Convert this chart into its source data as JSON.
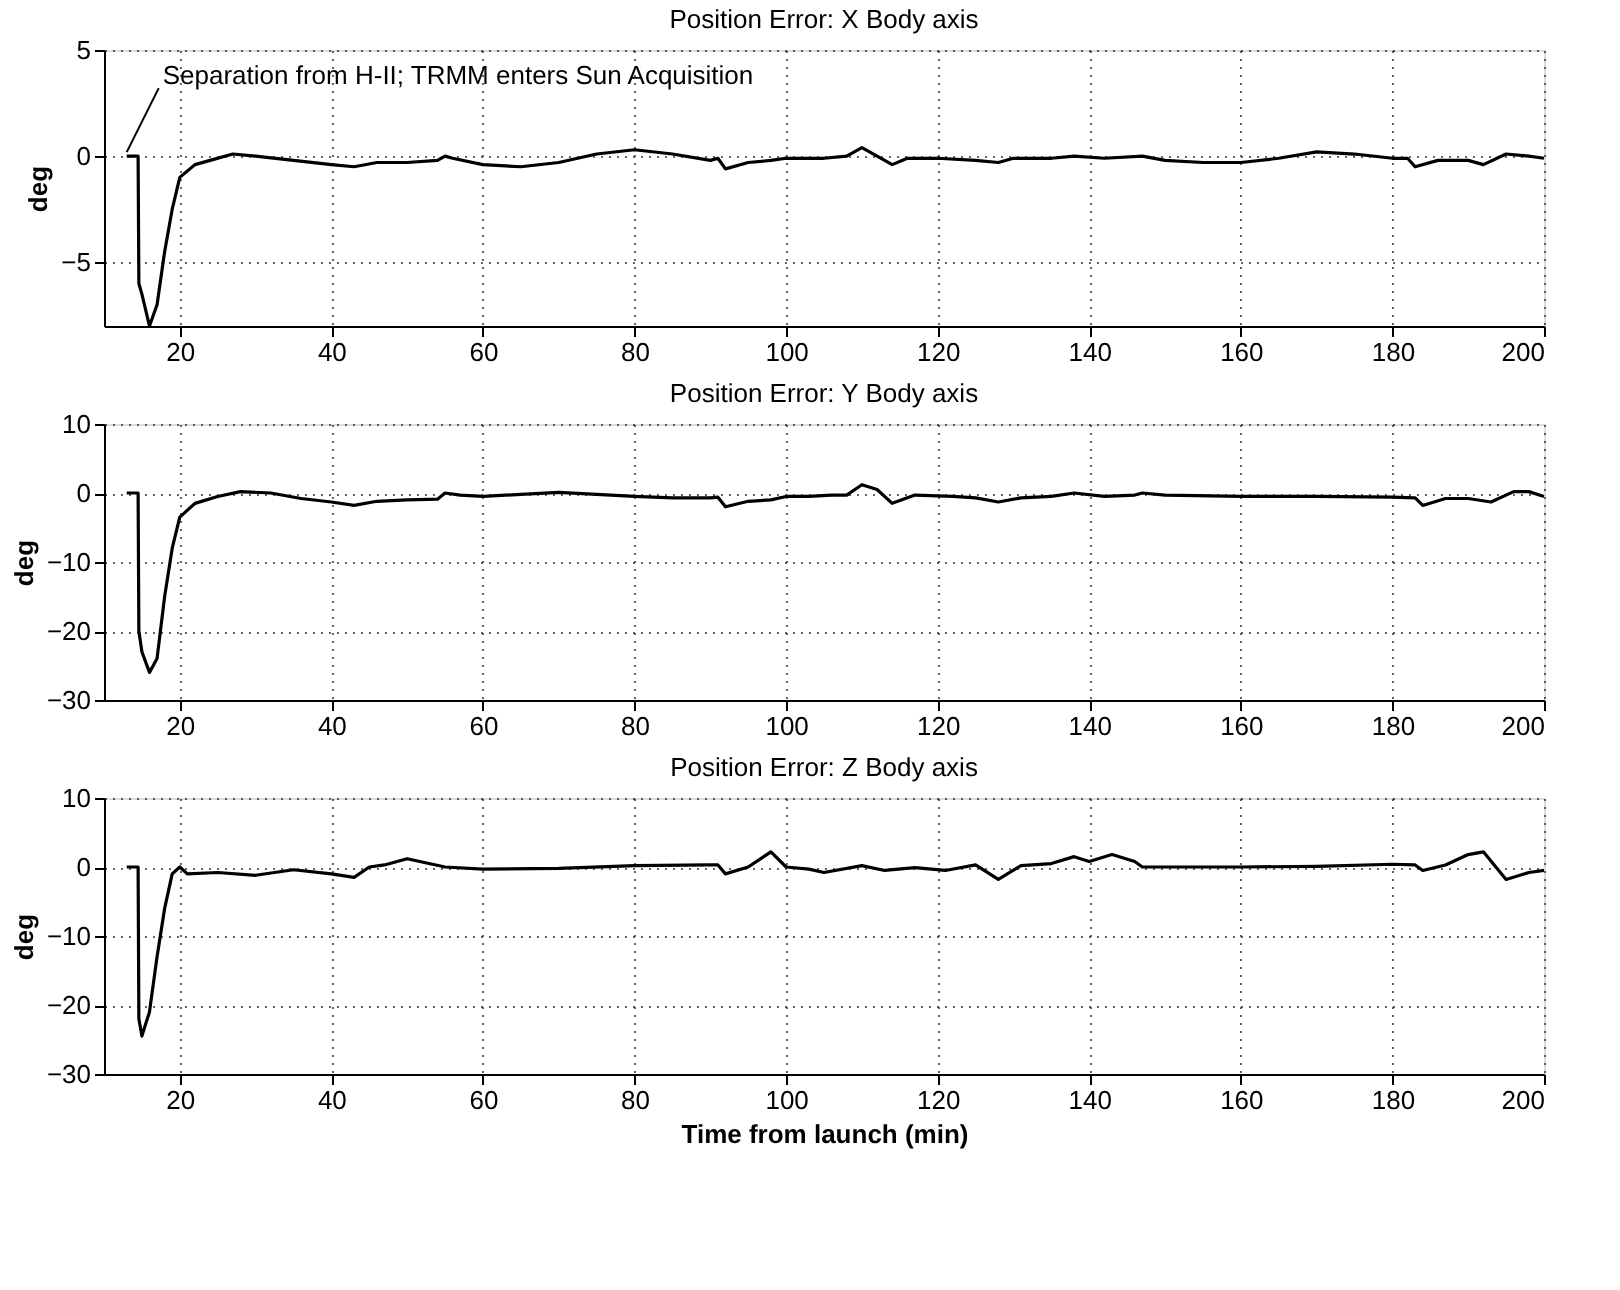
{
  "chart_data": [
    {
      "type": "line",
      "title": "Position Error: X Body axis",
      "ylabel": "deg",
      "xlim": [
        10,
        200
      ],
      "xticks": [
        20,
        40,
        60,
        80,
        100,
        120,
        140,
        160,
        180,
        200
      ],
      "ylim": [
        -8,
        5
      ],
      "yticks": [
        -5,
        0,
        5
      ],
      "grid": true,
      "annotations": [
        {
          "text": "Separation from H-II; TRMM enters Sun Acquisition",
          "x": 13,
          "y": 0
        }
      ],
      "x": [
        13,
        14.5,
        14.6,
        15,
        16,
        17,
        18,
        19,
        20,
        22,
        24,
        27,
        30,
        35,
        40,
        43,
        46,
        50,
        54,
        55,
        56,
        60,
        65,
        70,
        75,
        80,
        85,
        90,
        91,
        92,
        95,
        98,
        100,
        105,
        108,
        110,
        112,
        114,
        116,
        120,
        125,
        128,
        130,
        135,
        138,
        142,
        147,
        150,
        155,
        160,
        165,
        170,
        175,
        180,
        182,
        183,
        186,
        190,
        192,
        195,
        198,
        200
      ],
      "series": [
        {
          "color": "#000000",
          "values": [
            0,
            0,
            -6,
            -6.5,
            -8,
            -7,
            -4.5,
            -2.5,
            -1,
            -0.4,
            -0.2,
            0.1,
            0,
            -0.2,
            -0.4,
            -0.5,
            -0.3,
            -0.3,
            -0.2,
            0,
            -0.1,
            -0.4,
            -0.5,
            -0.3,
            0.1,
            0.3,
            0.1,
            -0.2,
            -0.1,
            -0.6,
            -0.3,
            -0.2,
            -0.1,
            -0.1,
            0,
            0.4,
            0,
            -0.4,
            -0.1,
            -0.1,
            -0.2,
            -0.3,
            -0.1,
            -0.1,
            0,
            -0.1,
            0,
            -0.2,
            -0.3,
            -0.3,
            -0.1,
            0.2,
            0.1,
            -0.1,
            -0.1,
            -0.5,
            -0.2,
            -0.2,
            -0.4,
            0.1,
            0,
            -0.1
          ]
        }
      ]
    },
    {
      "type": "line",
      "title": "Position Error: Y Body axis",
      "ylabel": "deg",
      "xlim": [
        10,
        200
      ],
      "xticks": [
        20,
        40,
        60,
        80,
        100,
        120,
        140,
        160,
        180,
        200
      ],
      "ylim": [
        -30,
        10
      ],
      "yticks": [
        -30,
        -20,
        -10,
        0,
        10
      ],
      "grid": true,
      "x": [
        13,
        14.5,
        14.6,
        15,
        16,
        17,
        18,
        19,
        20,
        22,
        25,
        28,
        32,
        36,
        40,
        43,
        46,
        50,
        54,
        55,
        57,
        60,
        65,
        70,
        75,
        80,
        85,
        90,
        91,
        92,
        95,
        98,
        100,
        103,
        106,
        108,
        110,
        112,
        114,
        117,
        122,
        125,
        128,
        131,
        135,
        138,
        142,
        146,
        147,
        150,
        160,
        170,
        180,
        183,
        184,
        187,
        190,
        193,
        196,
        198,
        200
      ],
      "series": [
        {
          "color": "#000000",
          "values": [
            0,
            0,
            -20,
            -23,
            -26,
            -24,
            -15,
            -8,
            -3.5,
            -1.5,
            -0.5,
            0.2,
            0,
            -0.8,
            -1.3,
            -1.8,
            -1.2,
            -1,
            -0.9,
            0,
            -0.3,
            -0.5,
            -0.2,
            0.1,
            -0.2,
            -0.5,
            -0.7,
            -0.7,
            -0.6,
            -2,
            -1.2,
            -1,
            -0.5,
            -0.5,
            -0.3,
            -0.3,
            1.2,
            0.5,
            -1.5,
            -0.3,
            -0.5,
            -0.7,
            -1.3,
            -0.7,
            -0.5,
            0,
            -0.5,
            -0.3,
            0,
            -0.3,
            -0.5,
            -0.5,
            -0.6,
            -0.7,
            -1.8,
            -0.8,
            -0.8,
            -1.3,
            0.2,
            0.2,
            -0.5
          ]
        }
      ]
    },
    {
      "type": "line",
      "title": "Position Error: Z Body axis",
      "xlabel": "Time from launch (min)",
      "ylabel": "deg",
      "xlim": [
        10,
        200
      ],
      "xticks": [
        20,
        40,
        60,
        80,
        100,
        120,
        140,
        160,
        180,
        200
      ],
      "ylim": [
        -30,
        10
      ],
      "yticks": [
        -30,
        -20,
        -10,
        0,
        10
      ],
      "grid": true,
      "x": [
        13,
        14.5,
        14.6,
        15,
        16,
        17,
        18,
        19,
        20,
        21,
        25,
        30,
        35,
        40,
        43,
        45,
        47,
        50,
        55,
        60,
        70,
        80,
        90,
        91,
        92,
        95,
        98,
        100,
        103,
        105,
        110,
        113,
        117,
        121,
        125,
        128,
        131,
        135,
        138,
        140,
        143,
        146,
        147,
        160,
        170,
        180,
        183,
        184,
        187,
        190,
        192,
        195,
        198,
        200
      ],
      "series": [
        {
          "color": "#000000",
          "values": [
            0,
            0,
            -22,
            -24.5,
            -21,
            -13,
            -6,
            -1,
            0,
            -1,
            -0.8,
            -1.2,
            -0.4,
            -1,
            -1.5,
            0,
            0.3,
            1.2,
            0,
            -0.3,
            -0.2,
            0.2,
            0.3,
            0.3,
            -1,
            0,
            2.2,
            0,
            -0.3,
            -0.8,
            0.2,
            -0.5,
            -0.1,
            -0.5,
            0.3,
            -1.8,
            0.2,
            0.5,
            1.5,
            0.8,
            1.8,
            0.8,
            0,
            0,
            0.1,
            0.4,
            0.3,
            -0.5,
            0.3,
            1.8,
            2.2,
            -1.8,
            -0.8,
            -0.5
          ]
        }
      ]
    }
  ]
}
